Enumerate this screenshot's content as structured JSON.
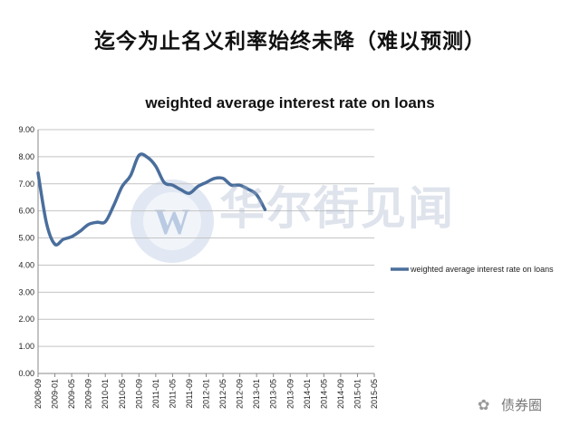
{
  "headline": "迄今为止名义利率始终未降（难以预测）",
  "watermark": "华尔街见闻",
  "footer": {
    "brand": "债券圈"
  },
  "chart_data": {
    "type": "line",
    "title": "weighted average interest rate on loans",
    "xlabel": "",
    "ylabel": "",
    "ylim": [
      0,
      9
    ],
    "yticks": [
      "0.00",
      "1.00",
      "2.00",
      "3.00",
      "4.00",
      "5.00",
      "6.00",
      "7.00",
      "8.00",
      "9.00"
    ],
    "grid": true,
    "legend_position": "right",
    "categories": [
      "2008-09",
      "2009-01",
      "2009-05",
      "2009-09",
      "2010-01",
      "2010-05",
      "2010-09",
      "2011-01",
      "2011-05",
      "2011-09",
      "2012-01",
      "2012-05",
      "2012-09",
      "2013-01",
      "2013-05",
      "2013-09",
      "2014-01",
      "2014-05",
      "2014-09",
      "2015-01",
      "2015-05"
    ],
    "series": [
      {
        "name": "weighted average interest rate on loans",
        "color": "#4a6e9c",
        "points": [
          [
            0,
            7.4
          ],
          [
            0.5,
            5.55
          ],
          [
            1.0,
            4.77
          ],
          [
            1.5,
            4.95
          ],
          [
            2.0,
            5.05
          ],
          [
            2.5,
            5.25
          ],
          [
            3.0,
            5.5
          ],
          [
            3.5,
            5.58
          ],
          [
            4.0,
            5.6
          ],
          [
            4.5,
            6.2
          ],
          [
            5.0,
            6.9
          ],
          [
            5.5,
            7.3
          ],
          [
            6.0,
            8.05
          ],
          [
            6.5,
            7.98
          ],
          [
            7.0,
            7.65
          ],
          [
            7.5,
            7.05
          ],
          [
            8.0,
            6.95
          ],
          [
            8.5,
            6.78
          ],
          [
            9.0,
            6.65
          ],
          [
            9.5,
            6.9
          ],
          [
            10.0,
            7.05
          ],
          [
            10.5,
            7.2
          ],
          [
            11.0,
            7.2
          ],
          [
            11.5,
            6.95
          ],
          [
            12.0,
            6.95
          ],
          [
            12.5,
            6.8
          ],
          [
            13.0,
            6.6
          ],
          [
            13.5,
            6.05
          ]
        ]
      }
    ]
  }
}
